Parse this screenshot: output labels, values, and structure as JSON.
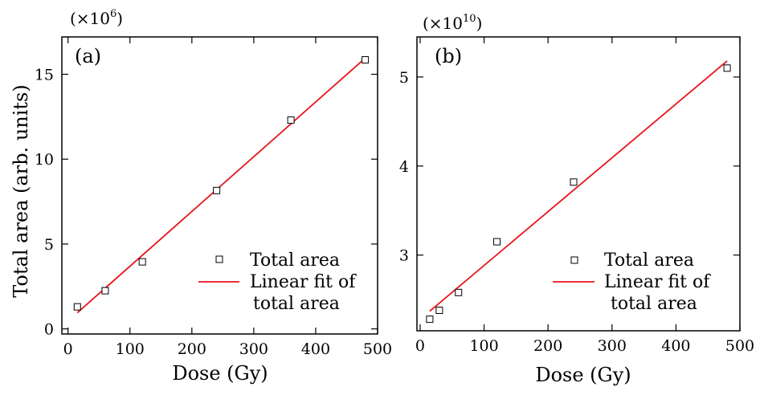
{
  "chart_data": [
    {
      "type": "scatter",
      "panel_label": "(a)",
      "multiplier": {
        "base": "(×10",
        "exponent": "6",
        "close": ")"
      },
      "xlabel": "Dose (Gy)",
      "ylabel": "Total area (arb. units)",
      "xlim": [
        -10,
        500
      ],
      "ylim": [
        -0.3,
        17.2
      ],
      "xticks": [
        0,
        100,
        200,
        300,
        400,
        500
      ],
      "yticks": [
        0,
        5,
        10,
        15
      ],
      "legend": {
        "position": "lower-right",
        "marker_label": "Total area",
        "line_label": [
          "Linear fit of",
          "total area"
        ]
      },
      "series": [
        {
          "name": "Total area",
          "kind": "marker",
          "x": [
            15,
            60,
            120,
            240,
            360,
            480
          ],
          "y": [
            1.3,
            2.25,
            3.95,
            8.15,
            12.3,
            15.85
          ]
        },
        {
          "name": "Linear fit of total area",
          "kind": "line",
          "color": "#e8141b",
          "x": [
            15,
            480
          ],
          "y": [
            0.95,
            15.95
          ]
        }
      ]
    },
    {
      "type": "scatter",
      "panel_label": "(b)",
      "multiplier": {
        "base": "(×10",
        "exponent": "10",
        "close": ")"
      },
      "xlabel": "Dose (Gy)",
      "ylabel": "",
      "xlim": [
        -5,
        500
      ],
      "ylim": [
        2.15,
        5.45
      ],
      "xticks": [
        0,
        100,
        200,
        300,
        400,
        500
      ],
      "yticks": [
        3,
        4,
        5
      ],
      "legend": {
        "position": "lower-right",
        "marker_label": "Total area",
        "line_label": [
          "Linear fit of",
          "total area"
        ]
      },
      "series": [
        {
          "name": "Total area",
          "kind": "marker",
          "x": [
            15,
            30,
            60,
            120,
            240,
            480
          ],
          "y": [
            2.28,
            2.38,
            2.58,
            3.15,
            3.82,
            5.1
          ]
        },
        {
          "name": "Linear fit of total area",
          "kind": "line",
          "color": "#e8141b",
          "x": [
            15,
            480
          ],
          "y": [
            2.37,
            5.18
          ]
        }
      ]
    }
  ]
}
